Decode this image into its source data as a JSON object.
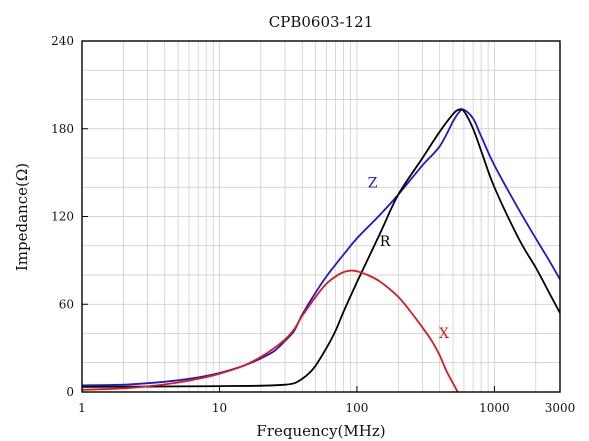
{
  "chart_data": {
    "type": "line",
    "title": "CPB0603-121",
    "xlabel": "Frequency(MHz)",
    "ylabel": "Impedance(Ω)",
    "x_scale": "log",
    "xlim": [
      1,
      3000
    ],
    "ylim": [
      0,
      240
    ],
    "x_ticks": [
      1,
      10,
      100,
      1000,
      3000
    ],
    "x_tick_labels": [
      "1",
      "10",
      "100",
      "1000",
      "3000"
    ],
    "y_ticks": [
      0,
      60,
      120,
      180,
      240
    ],
    "y_tick_labels": [
      "0",
      "60",
      "120",
      "180",
      "240"
    ],
    "grid": true,
    "legend": "inline labels",
    "series": [
      {
        "name": "Z",
        "color": "#1a1ad6",
        "x": [
          1,
          2,
          3,
          5,
          7,
          10,
          15,
          20,
          25,
          30,
          35,
          40,
          50,
          60,
          80,
          100,
          150,
          200,
          300,
          400,
          500,
          550,
          600,
          700,
          800,
          1000,
          1500,
          2000,
          2500,
          3000
        ],
        "y": [
          4.5,
          5,
          6,
          8,
          10,
          13,
          18,
          23,
          28,
          35,
          42,
          53,
          68,
          79,
          94,
          105,
          122,
          135,
          155,
          168,
          185,
          191,
          193,
          187,
          175,
          155,
          125,
          105,
          90,
          77
        ]
      },
      {
        "name": "R",
        "color": "#000000",
        "x": [
          1,
          5,
          10,
          20,
          30,
          35,
          40,
          45,
          50,
          60,
          70,
          80,
          100,
          150,
          200,
          300,
          400,
          500,
          550,
          600,
          700,
          800,
          1000,
          1500,
          2000,
          2500,
          3000
        ],
        "y": [
          3.5,
          3.8,
          4,
          4.3,
          5,
          6,
          9,
          13,
          18,
          30,
          42,
          55,
          75,
          110,
          135,
          160,
          178,
          190,
          193,
          192,
          180,
          165,
          140,
          105,
          85,
          68,
          54
        ]
      },
      {
        "name": "X",
        "color": "#e01818",
        "x": [
          1,
          2,
          3,
          5,
          7,
          10,
          15,
          20,
          25,
          30,
          35,
          40,
          50,
          60,
          70,
          80,
          90,
          100,
          120,
          150,
          200,
          250,
          300,
          350,
          400,
          450,
          500,
          540
        ],
        "y": [
          1.5,
          2.5,
          3.8,
          6.5,
          9,
          12.5,
          18,
          24,
          30,
          36,
          43,
          52,
          65,
          74,
          79,
          82,
          83,
          82.5,
          80,
          75,
          65,
          54,
          44,
          35,
          25,
          14,
          6,
          0
        ]
      }
    ],
    "annotations": [
      {
        "text": "Z",
        "x": 130,
        "y": 140
      },
      {
        "text": "R",
        "x": 160,
        "y": 100
      },
      {
        "text": "X",
        "x": 430,
        "y": 37
      }
    ]
  }
}
